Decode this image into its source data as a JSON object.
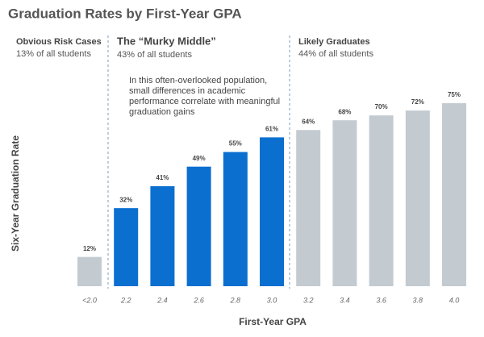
{
  "chart_data": {
    "type": "bar",
    "title": "Graduation Rates by First-Year GPA",
    "x_label": "First-Year GPA",
    "y_label": "Six-Year Graduation Rate",
    "categories": [
      "<2.0",
      "2.2",
      "2.4",
      "2.6",
      "2.8",
      "3.0",
      "3.2",
      "3.4",
      "3.6",
      "3.8",
      "4.0"
    ],
    "values": [
      12,
      32,
      41,
      49,
      55,
      61,
      64,
      68,
      70,
      72,
      75
    ],
    "value_labels": [
      "12%",
      "32%",
      "41%",
      "49%",
      "55%",
      "61%",
      "64%",
      "68%",
      "70%",
      "72%",
      "75%"
    ],
    "colors": [
      "#c3cbd1",
      "#0b6fd0",
      "#0b6fd0",
      "#0b6fd0",
      "#0b6fd0",
      "#0b6fd0",
      "#c3cbd1",
      "#c3cbd1",
      "#c3cbd1",
      "#c3cbd1",
      "#c3cbd1"
    ],
    "sections": [
      {
        "title": "Obvious Risk Cases",
        "subtitle": "13% of all students"
      },
      {
        "title": "The “Murky Middle”",
        "subtitle": "43% of all students"
      },
      {
        "title": "Likely Graduates",
        "subtitle": "44% of all students"
      }
    ],
    "note": "In this often-overlooked population, small differences in academic performance correlate with meaningful graduation gains"
  }
}
